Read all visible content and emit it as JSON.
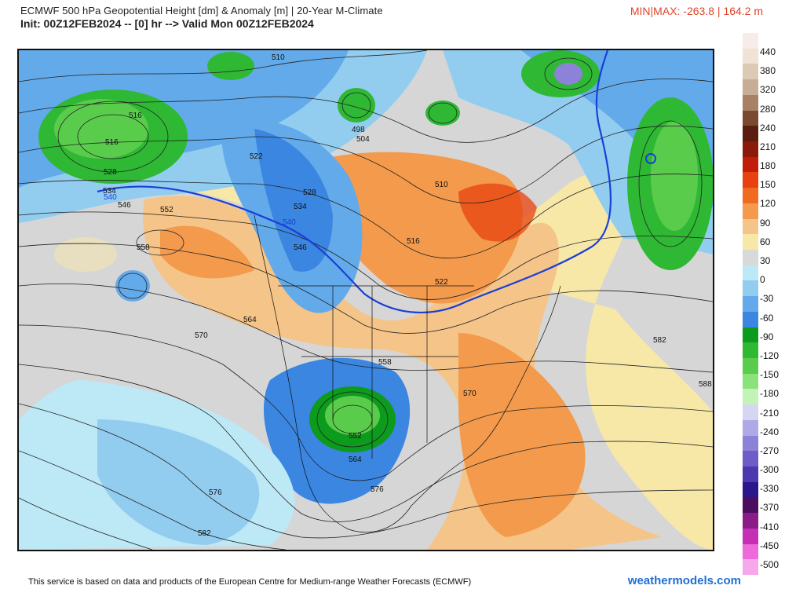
{
  "header": {
    "title_line1": "ECMWF 500 hPa Geopotential Height [dm] & Anomaly [m] | 20-Year M-Climate",
    "title_line2": "Init: 00Z12FEB2024 -- [0] hr --> Valid Mon 00Z12FEB2024",
    "minmax": "MIN|MAX: -263.8 | 164.2 m"
  },
  "colorbar": {
    "labels": [
      "440",
      "380",
      "320",
      "280",
      "240",
      "210",
      "180",
      "150",
      "120",
      "90",
      "60",
      "30",
      "0",
      "-30",
      "-60",
      "-90",
      "-120",
      "-150",
      "-180",
      "-210",
      "-240",
      "-270",
      "-300",
      "-330",
      "-370",
      "-410",
      "-450",
      "-500"
    ],
    "colors": [
      "#f7ece7",
      "#eee3d4",
      "#ddcab5",
      "#c8ad96",
      "#a88066",
      "#7a4a30",
      "#5a1d10",
      "#8a1a0a",
      "#c21d08",
      "#e8410f",
      "#f06a20",
      "#f39a4c",
      "#f5c488",
      "#f7e8a8",
      "#d9d9d9",
      "#bde8f6",
      "#92cdf0",
      "#63aaea",
      "#3a86e0",
      "#0c9b1c",
      "#2fb834",
      "#5acc4c",
      "#8ae27a",
      "#c4f3b8",
      "#d7d6f2",
      "#b0a9e6",
      "#8c82d8",
      "#6f5cc7",
      "#4d38b0",
      "#2c168c",
      "#4b0d5e",
      "#8a1b87",
      "#c42fb5",
      "#ee69d9",
      "#f7a8ec"
    ]
  },
  "contour_labels": [
    "510",
    "516",
    "516",
    "522",
    "528",
    "534",
    "540",
    "546",
    "552",
    "558",
    "564",
    "570",
    "576",
    "582",
    "588",
    "498",
    "504",
    "510",
    "516",
    "522",
    "528",
    "534",
    "540",
    "546",
    "552",
    "558",
    "564",
    "570",
    "576",
    "582"
  ],
  "footer": {
    "credit": "This service is based on data and products of the European Centre for Medium-range Weather Forecasts (ECMWF)",
    "site": "weathermodels.com"
  }
}
